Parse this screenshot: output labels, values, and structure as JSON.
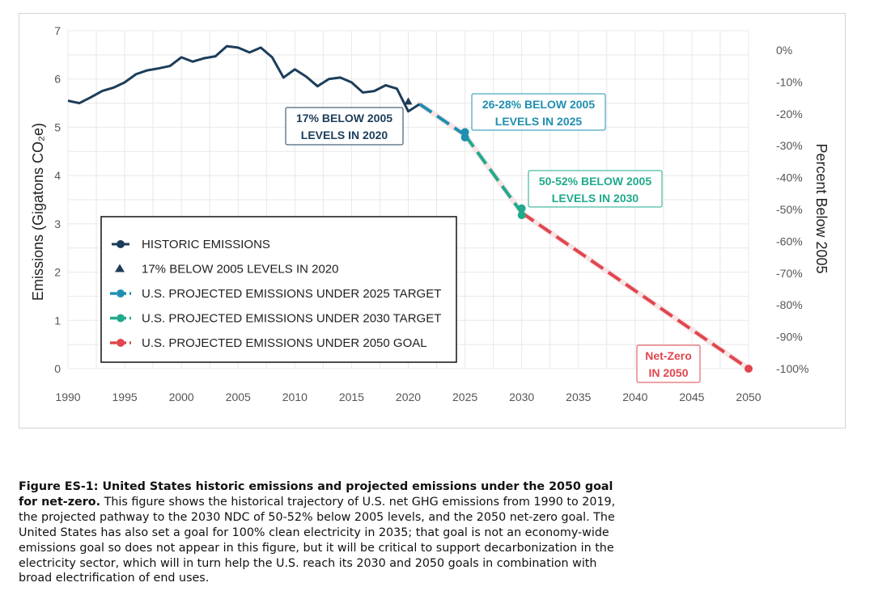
{
  "chart_data": {
    "type": "line",
    "ylabel": "Emissions (Gigatons CO₂e)",
    "y2label": "Percent Below 2005",
    "xlim": [
      1990,
      2050
    ],
    "ylim": [
      0,
      7
    ],
    "grid": true,
    "x_ticks": [
      "1990",
      "1995",
      "2000",
      "2005",
      "2010",
      "2015",
      "2020",
      "2025",
      "2030",
      "2035",
      "2040",
      "2045",
      "2050"
    ],
    "y_ticks": [
      "0",
      "1",
      "2",
      "3",
      "4",
      "5",
      "6",
      "7"
    ],
    "y2_ticks": [
      "0%",
      "-10%",
      "-20%",
      "-30%",
      "-40%",
      "-50%",
      "-60%",
      "-70%",
      "-80%",
      "-90%",
      "-100%"
    ],
    "series": [
      {
        "name": "HISTORIC EMISSIONS",
        "color": "#1c3d5a",
        "x": [
          1990,
          1991,
          1992,
          1993,
          1994,
          1995,
          1996,
          1997,
          1998,
          1999,
          2000,
          2001,
          2002,
          2003,
          2004,
          2005,
          2006,
          2007,
          2008,
          2009,
          2010,
          2011,
          2012,
          2013,
          2014,
          2015,
          2016,
          2017,
          2018,
          2019,
          2020,
          2021
        ],
        "y": [
          5.55,
          5.5,
          5.62,
          5.75,
          5.82,
          5.93,
          6.1,
          6.18,
          6.22,
          6.27,
          6.45,
          6.36,
          6.43,
          6.47,
          6.68,
          6.65,
          6.55,
          6.65,
          6.45,
          6.03,
          6.2,
          6.05,
          5.85,
          6.0,
          6.03,
          5.93,
          5.72,
          5.75,
          5.87,
          5.8,
          5.33,
          5.48
        ]
      },
      {
        "name": "17% BELOW 2005 LEVELS IN 2020",
        "color": "#1c3d5a",
        "marker": "triangle",
        "x": [
          2020
        ],
        "y": [
          5.52
        ]
      },
      {
        "name": "U.S. PROJECTED EMISSIONS UNDER 2025 TARGET",
        "color": "#1f8fb0",
        "x": [
          2021,
          2025
        ],
        "y": [
          5.48,
          4.84
        ]
      },
      {
        "name": "U.S. PROJECTED EMISSIONS UNDER 2030 TARGET",
        "color": "#1faa8c",
        "x": [
          2025,
          2030
        ],
        "y": [
          4.84,
          3.23
        ]
      },
      {
        "name": "U.S. PROJECTED EMISSIONS UNDER 2050 GOAL",
        "color": "#e0464e",
        "x": [
          2030,
          2050
        ],
        "y": [
          3.23,
          0
        ]
      }
    ],
    "band_points": [
      {
        "x": 2025,
        "y": 4.9,
        "color": "#1f8fb0"
      },
      {
        "x": 2025,
        "y": 4.79,
        "color": "#1f8fb0"
      },
      {
        "x": 2030,
        "y": 3.32,
        "color": "#1faa8c"
      },
      {
        "x": 2030,
        "y": 3.18,
        "color": "#1faa8c"
      },
      {
        "x": 2050,
        "y": 0,
        "color": "#e0464e"
      }
    ],
    "annotations": [
      {
        "lines": [
          "17% BELOW 2005",
          "LEVELS IN 2020"
        ],
        "color": "#1c3d5a"
      },
      {
        "lines": [
          "26-28% BELOW 2005",
          "LEVELS IN 2025"
        ],
        "color": "#1f8fb0"
      },
      {
        "lines": [
          "50-52% BELOW 2005",
          "LEVELS IN 2030"
        ],
        "color": "#1faa8c"
      },
      {
        "lines": [
          "Net-Zero",
          "IN 2050"
        ],
        "color": "#e0464e"
      }
    ],
    "legend_position": "left"
  },
  "caption": {
    "bold": "Figure ES-1: United States historic emissions and projected emissions under the 2050 goal for net-zero.",
    "text": " This figure shows the historical trajectory of U.S. net GHG emissions from 1990 to 2019, the projected pathway to the 2030 NDC of 50-52% below 2005 levels, and the 2050 net-zero goal. The United States has also set a goal for 100% clean electricity in 2035; that goal is not an economy-wide emissions goal so does not appear in this figure, but it will be critical to support decarbonization in the electricity sector, which will in turn help the U.S. reach its 2030 and 2050 goals in combination with broad electrification of end uses."
  }
}
